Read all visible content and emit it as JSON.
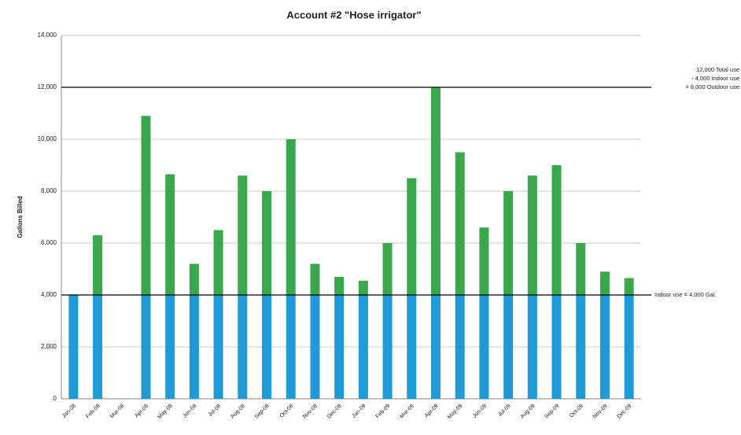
{
  "chart_data": {
    "type": "stacked_bar",
    "title": "Account #2 \"Hose irrigator\"",
    "y_label": "Gallons Billed",
    "categories": [
      "Jan-08",
      "Feb-08",
      "Mar-08",
      "Apr-08",
      "May-08",
      "Jun-08",
      "Jul-08",
      "Aug-08",
      "Sep-08",
      "Oct-08",
      "Nov-08",
      "Dec-08",
      "Jan-09",
      "Feb-09",
      "Mar-09",
      "Apr-09",
      "May-09",
      "Jun-09",
      "Jul-09",
      "Aug-09",
      "Sep-09",
      "Oct-09",
      "Nov-09",
      "Dec-09"
    ],
    "series": [
      {
        "color": "#1f9ad6",
        "values": [
          4000,
          4000,
          0,
          4000,
          4000,
          4000,
          4000,
          4000,
          4000,
          4000,
          4000,
          4000,
          4000,
          4000,
          4000,
          4000,
          4000,
          4000,
          4000,
          4000,
          4000,
          4000,
          4000,
          4000
        ]
      },
      {
        "color": "#3aa84a",
        "values": [
          0,
          2300,
          0,
          6900,
          4650,
          1200,
          2500,
          4600,
          4000,
          6000,
          1200,
          700,
          550,
          2000,
          4500,
          8000,
          5500,
          2600,
          4000,
          4600,
          5000,
          2000,
          900,
          650
        ]
      }
    ],
    "ylim": [
      0,
      14000
    ],
    "yticks": [
      0,
      {
        "value": 2000,
        "label": "2,000"
      },
      {
        "value": 4000,
        "label": "4,000"
      },
      {
        "value": 6000,
        "label": "6,000"
      },
      {
        "value": 8000,
        "label": "8,000"
      },
      {
        "value": 10000,
        "label": "10,000"
      },
      {
        "value": 12000,
        "label": "12,000"
      },
      {
        "value": 14000,
        "label": "14,000"
      }
    ],
    "grid": true,
    "reference_lines": [
      {
        "value": 12000,
        "labels": [
          "12,000 Total use",
          "- 4,000 Indoor use",
          "= 8,000 Outdoor use"
        ]
      },
      {
        "value": 4000,
        "labels": [
          "Indoor use = 4,000 Gal."
        ]
      }
    ]
  }
}
